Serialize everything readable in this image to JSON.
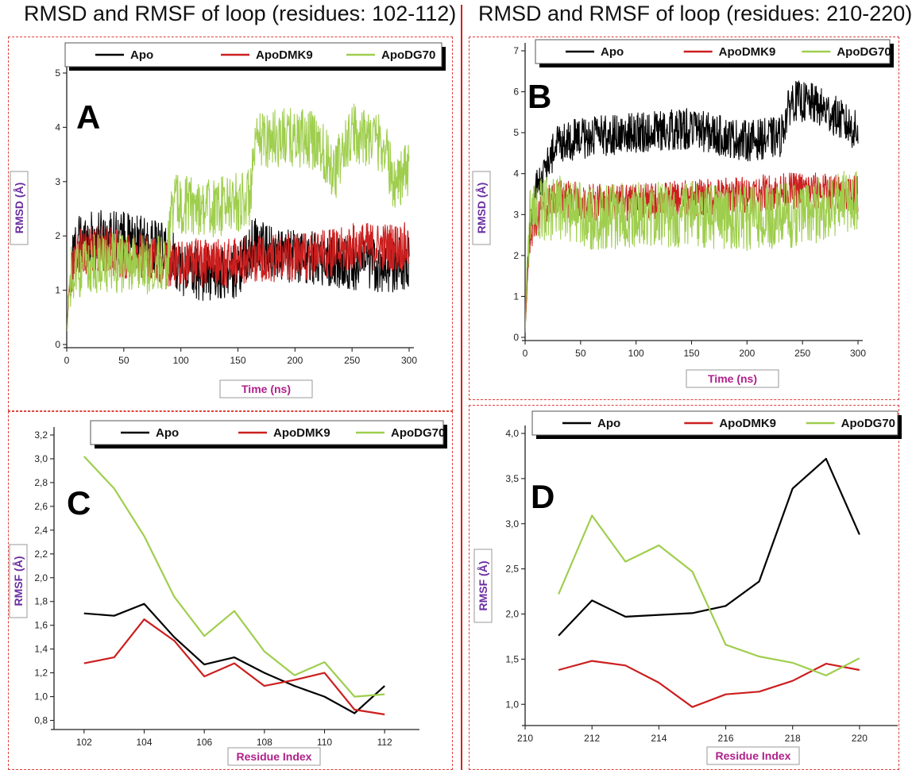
{
  "titles": {
    "left": "RMSD and RMSF of loop (residues: 102-112)",
    "right": "RMSD and RMSF of loop (residues: 210-220)"
  },
  "colors": {
    "Apo": "#000000",
    "ApoDMK9": "#cc1f1f",
    "ApoDG70": "#9fce4e"
  },
  "chart_data": [
    {
      "id": "A",
      "type": "line",
      "letter": "A",
      "xlabel": "Time (ns)",
      "ylabel": "RMSD (Å)",
      "xlim": [
        0,
        300
      ],
      "ylim": [
        0,
        5
      ],
      "xticks": [
        0,
        50,
        100,
        150,
        200,
        250,
        300
      ],
      "yticks": [
        0,
        1,
        2,
        3,
        4,
        5
      ],
      "decimal": ".",
      "noisy": true,
      "series": [
        {
          "name": "Apo",
          "x": [
            0,
            2,
            5,
            10,
            20,
            40,
            60,
            90,
            100,
            120,
            150,
            165,
            180,
            200,
            220,
            240,
            250,
            260,
            280,
            300
          ],
          "y": [
            0.2,
            1.0,
            1.6,
            1.9,
            1.95,
            2.0,
            1.9,
            1.7,
            1.4,
            1.3,
            1.35,
            1.9,
            1.7,
            1.6,
            1.6,
            1.5,
            1.5,
            1.5,
            1.45,
            1.5
          ],
          "amp": 0.5
        },
        {
          "name": "ApoDMK9",
          "x": [
            0,
            2,
            5,
            10,
            30,
            60,
            90,
            100,
            140,
            165,
            200,
            240,
            250,
            270,
            300
          ],
          "y": [
            0.2,
            1.0,
            1.5,
            1.7,
            1.75,
            1.6,
            1.5,
            1.5,
            1.5,
            1.6,
            1.6,
            1.7,
            1.8,
            1.8,
            1.8
          ],
          "amp": 0.45
        },
        {
          "name": "ApoDG70",
          "x": [
            0,
            2,
            5,
            10,
            30,
            60,
            88,
            92,
            100,
            130,
            160,
            166,
            170,
            200,
            220,
            235,
            250,
            270,
            280,
            285,
            300
          ],
          "y": [
            0.2,
            1.0,
            1.4,
            1.4,
            1.5,
            1.5,
            1.45,
            2.6,
            2.6,
            2.5,
            2.7,
            3.6,
            3.8,
            3.8,
            3.75,
            3.2,
            3.9,
            3.8,
            3.6,
            3.0,
            3.2
          ],
          "amp": 0.55
        }
      ]
    },
    {
      "id": "B",
      "type": "line",
      "letter": "B",
      "xlabel": "Time (ns)",
      "ylabel": "RMSD (Å)",
      "xlim": [
        0,
        300
      ],
      "ylim": [
        0,
        7
      ],
      "xticks": [
        0,
        50,
        100,
        150,
        200,
        250,
        300
      ],
      "yticks": [
        0,
        1,
        2,
        3,
        4,
        5,
        6,
        7
      ],
      "decimal": ".",
      "noisy": true,
      "series": [
        {
          "name": "Apo",
          "x": [
            0,
            2,
            5,
            10,
            20,
            30,
            40,
            60,
            100,
            150,
            180,
            200,
            230,
            240,
            260,
            280,
            300
          ],
          "y": [
            0.1,
            1.5,
            2.8,
            3.6,
            4.2,
            4.8,
            4.8,
            4.9,
            5.0,
            5.1,
            4.9,
            4.8,
            4.9,
            5.8,
            5.7,
            5.4,
            5.0
          ],
          "amp": 0.5
        },
        {
          "name": "ApoDMK9",
          "x": [
            0,
            2,
            5,
            15,
            30,
            60,
            100,
            150,
            200,
            250,
            300
          ],
          "y": [
            0.1,
            1.5,
            2.5,
            3.2,
            3.4,
            3.3,
            3.3,
            3.4,
            3.5,
            3.6,
            3.5
          ],
          "amp": 0.45
        },
        {
          "name": "ApoDG70",
          "x": [
            0,
            2,
            5,
            15,
            30,
            60,
            100,
            150,
            200,
            250,
            300
          ],
          "y": [
            0.1,
            2.0,
            3.0,
            3.1,
            3.2,
            2.9,
            3.0,
            3.0,
            2.9,
            3.0,
            3.4
          ],
          "amp": 0.8
        }
      ]
    },
    {
      "id": "C",
      "type": "line",
      "letter": "C",
      "xlabel": "Residue Index",
      "ylabel": "RMSF (Å)",
      "xlim": [
        101,
        113
      ],
      "ylim": [
        0.75,
        3.2
      ],
      "xticks": [
        102,
        104,
        106,
        108,
        110,
        112
      ],
      "yticks": [
        0.8,
        1.0,
        1.2,
        1.4,
        1.6,
        1.8,
        2.0,
        2.2,
        2.4,
        2.6,
        2.8,
        3.0,
        3.2
      ],
      "decimal": ",",
      "noisy": false,
      "series": [
        {
          "name": "Apo",
          "x": [
            102,
            103,
            104,
            105,
            106,
            107,
            108,
            109,
            110,
            111,
            112
          ],
          "y": [
            1.7,
            1.68,
            1.78,
            1.5,
            1.27,
            1.33,
            1.2,
            1.09,
            1.0,
            0.86,
            1.09
          ]
        },
        {
          "name": "ApoDMK9",
          "x": [
            102,
            103,
            104,
            105,
            106,
            107,
            108,
            109,
            110,
            111,
            112
          ],
          "y": [
            1.28,
            1.33,
            1.65,
            1.47,
            1.17,
            1.28,
            1.09,
            1.14,
            1.2,
            0.89,
            0.85
          ]
        },
        {
          "name": "ApoDG70",
          "x": [
            102,
            103,
            104,
            105,
            106,
            107,
            108,
            109,
            110,
            111,
            112
          ],
          "y": [
            3.02,
            2.75,
            2.35,
            1.84,
            1.51,
            1.72,
            1.38,
            1.18,
            1.29,
            1.0,
            1.02
          ]
        }
      ]
    },
    {
      "id": "D",
      "type": "line",
      "letter": "D",
      "xlabel": "Residue Index",
      "ylabel": "RMSF (Å)",
      "xlim": [
        210,
        221
      ],
      "ylim": [
        0.8,
        4.0
      ],
      "xticks": [
        210,
        212,
        214,
        216,
        218,
        220
      ],
      "yticks": [
        1.0,
        1.5,
        2.0,
        2.5,
        3.0,
        3.5,
        4.0
      ],
      "decimal": ",",
      "noisy": false,
      "series": [
        {
          "name": "Apo",
          "x": [
            211,
            212,
            213,
            214,
            215,
            216,
            217,
            218,
            219,
            220
          ],
          "y": [
            1.76,
            2.15,
            1.97,
            1.99,
            2.01,
            2.09,
            2.36,
            3.39,
            3.72,
            2.88
          ]
        },
        {
          "name": "ApoDMK9",
          "x": [
            211,
            212,
            213,
            214,
            215,
            216,
            217,
            218,
            219,
            220
          ],
          "y": [
            1.38,
            1.48,
            1.43,
            1.24,
            0.97,
            1.11,
            1.14,
            1.26,
            1.45,
            1.38
          ]
        },
        {
          "name": "ApoDG70",
          "x": [
            211,
            212,
            213,
            214,
            215,
            216,
            217,
            218,
            219,
            220
          ],
          "y": [
            2.22,
            3.09,
            2.58,
            2.76,
            2.47,
            1.66,
            1.53,
            1.46,
            1.32,
            1.51
          ]
        }
      ]
    }
  ]
}
